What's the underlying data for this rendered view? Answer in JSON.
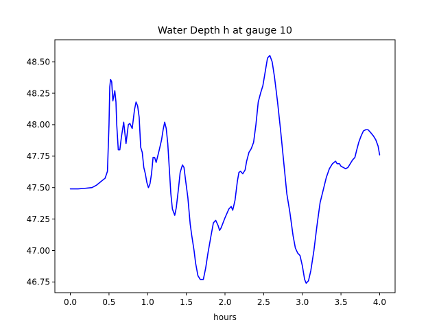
{
  "chart_data": {
    "type": "line",
    "title": "Water Depth h at gauge 10",
    "xlabel": "hours",
    "ylabel": "",
    "xlim": [
      -0.2,
      4.2
    ],
    "ylim": [
      46.665,
      48.675
    ],
    "x_ticks": [
      0.0,
      0.5,
      1.0,
      1.5,
      2.0,
      2.5,
      3.0,
      3.5,
      4.0
    ],
    "x_tick_labels": [
      "0.0",
      "0.5",
      "1.0",
      "1.5",
      "2.0",
      "2.5",
      "3.0",
      "3.5",
      "4.0"
    ],
    "y_ticks": [
      46.75,
      47.0,
      47.25,
      47.5,
      47.75,
      48.0,
      48.25,
      48.5
    ],
    "y_tick_labels": [
      "46.75",
      "47.00",
      "47.25",
      "47.50",
      "47.75",
      "48.00",
      "48.25",
      "48.50"
    ],
    "grid": false,
    "legend": false,
    "series": [
      {
        "color": "#0000ff",
        "points": [
          [
            0.0,
            47.49
          ],
          [
            0.1,
            47.49
          ],
          [
            0.2,
            47.495
          ],
          [
            0.28,
            47.5
          ],
          [
            0.34,
            47.52
          ],
          [
            0.4,
            47.55
          ],
          [
            0.45,
            47.575
          ],
          [
            0.48,
            47.63
          ],
          [
            0.5,
            48.0
          ],
          [
            0.51,
            48.3
          ],
          [
            0.52,
            48.36
          ],
          [
            0.535,
            48.34
          ],
          [
            0.55,
            48.19
          ],
          [
            0.56,
            48.22
          ],
          [
            0.575,
            48.27
          ],
          [
            0.59,
            48.18
          ],
          [
            0.6,
            48.0
          ],
          [
            0.62,
            47.8
          ],
          [
            0.64,
            47.8
          ],
          [
            0.66,
            47.9
          ],
          [
            0.69,
            48.02
          ],
          [
            0.72,
            47.85
          ],
          [
            0.75,
            48.0
          ],
          [
            0.77,
            48.01
          ],
          [
            0.8,
            47.97
          ],
          [
            0.83,
            48.12
          ],
          [
            0.85,
            48.18
          ],
          [
            0.87,
            48.15
          ],
          [
            0.89,
            48.06
          ],
          [
            0.91,
            47.82
          ],
          [
            0.93,
            47.78
          ],
          [
            0.95,
            47.66
          ],
          [
            0.97,
            47.61
          ],
          [
            0.99,
            47.54
          ],
          [
            1.01,
            47.5
          ],
          [
            1.03,
            47.53
          ],
          [
            1.05,
            47.61
          ],
          [
            1.07,
            47.74
          ],
          [
            1.09,
            47.74
          ],
          [
            1.11,
            47.7
          ],
          [
            1.13,
            47.75
          ],
          [
            1.15,
            47.8
          ],
          [
            1.18,
            47.88
          ],
          [
            1.2,
            47.96
          ],
          [
            1.22,
            48.02
          ],
          [
            1.24,
            47.97
          ],
          [
            1.26,
            47.85
          ],
          [
            1.28,
            47.65
          ],
          [
            1.3,
            47.45
          ],
          [
            1.32,
            47.33
          ],
          [
            1.35,
            47.28
          ],
          [
            1.37,
            47.34
          ],
          [
            1.4,
            47.5
          ],
          [
            1.42,
            47.62
          ],
          [
            1.45,
            47.68
          ],
          [
            1.47,
            47.66
          ],
          [
            1.49,
            47.56
          ],
          [
            1.52,
            47.42
          ],
          [
            1.55,
            47.21
          ],
          [
            1.57,
            47.12
          ],
          [
            1.6,
            47.0
          ],
          [
            1.62,
            46.9
          ],
          [
            1.65,
            46.8
          ],
          [
            1.68,
            46.77
          ],
          [
            1.72,
            46.77
          ],
          [
            1.75,
            46.86
          ],
          [
            1.78,
            46.98
          ],
          [
            1.82,
            47.12
          ],
          [
            1.85,
            47.22
          ],
          [
            1.88,
            47.24
          ],
          [
            1.91,
            47.2
          ],
          [
            1.93,
            47.16
          ],
          [
            1.95,
            47.18
          ],
          [
            2.0,
            47.26
          ],
          [
            2.05,
            47.33
          ],
          [
            2.08,
            47.35
          ],
          [
            2.1,
            47.32
          ],
          [
            2.13,
            47.4
          ],
          [
            2.16,
            47.55
          ],
          [
            2.18,
            47.62
          ],
          [
            2.2,
            47.63
          ],
          [
            2.23,
            47.61
          ],
          [
            2.26,
            47.64
          ],
          [
            2.28,
            47.71
          ],
          [
            2.31,
            47.78
          ],
          [
            2.34,
            47.81
          ],
          [
            2.37,
            47.86
          ],
          [
            2.4,
            48.0
          ],
          [
            2.43,
            48.18
          ],
          [
            2.46,
            48.25
          ],
          [
            2.49,
            48.31
          ],
          [
            2.52,
            48.42
          ],
          [
            2.55,
            48.53
          ],
          [
            2.58,
            48.55
          ],
          [
            2.61,
            48.5
          ],
          [
            2.64,
            48.38
          ],
          [
            2.68,
            48.18
          ],
          [
            2.72,
            47.95
          ],
          [
            2.76,
            47.7
          ],
          [
            2.8,
            47.45
          ],
          [
            2.84,
            47.3
          ],
          [
            2.88,
            47.12
          ],
          [
            2.91,
            47.02
          ],
          [
            2.94,
            46.98
          ],
          [
            2.97,
            46.96
          ],
          [
            3.0,
            46.88
          ],
          [
            3.03,
            46.77
          ],
          [
            3.05,
            46.74
          ],
          [
            3.08,
            46.76
          ],
          [
            3.11,
            46.84
          ],
          [
            3.15,
            47.0
          ],
          [
            3.19,
            47.2
          ],
          [
            3.23,
            47.38
          ],
          [
            3.27,
            47.48
          ],
          [
            3.31,
            47.58
          ],
          [
            3.35,
            47.65
          ],
          [
            3.39,
            47.69
          ],
          [
            3.41,
            47.7
          ],
          [
            3.43,
            47.71
          ],
          [
            3.45,
            47.69
          ],
          [
            3.48,
            47.69
          ],
          [
            3.5,
            47.67
          ],
          [
            3.53,
            47.66
          ],
          [
            3.56,
            47.65
          ],
          [
            3.59,
            47.66
          ],
          [
            3.62,
            47.69
          ],
          [
            3.65,
            47.72
          ],
          [
            3.68,
            47.74
          ],
          [
            3.7,
            47.79
          ],
          [
            3.73,
            47.86
          ],
          [
            3.76,
            47.91
          ],
          [
            3.79,
            47.95
          ],
          [
            3.82,
            47.96
          ],
          [
            3.85,
            47.96
          ],
          [
            3.88,
            47.94
          ],
          [
            3.92,
            47.91
          ],
          [
            3.95,
            47.88
          ],
          [
            3.98,
            47.83
          ],
          [
            4.0,
            47.76
          ]
        ]
      }
    ]
  }
}
